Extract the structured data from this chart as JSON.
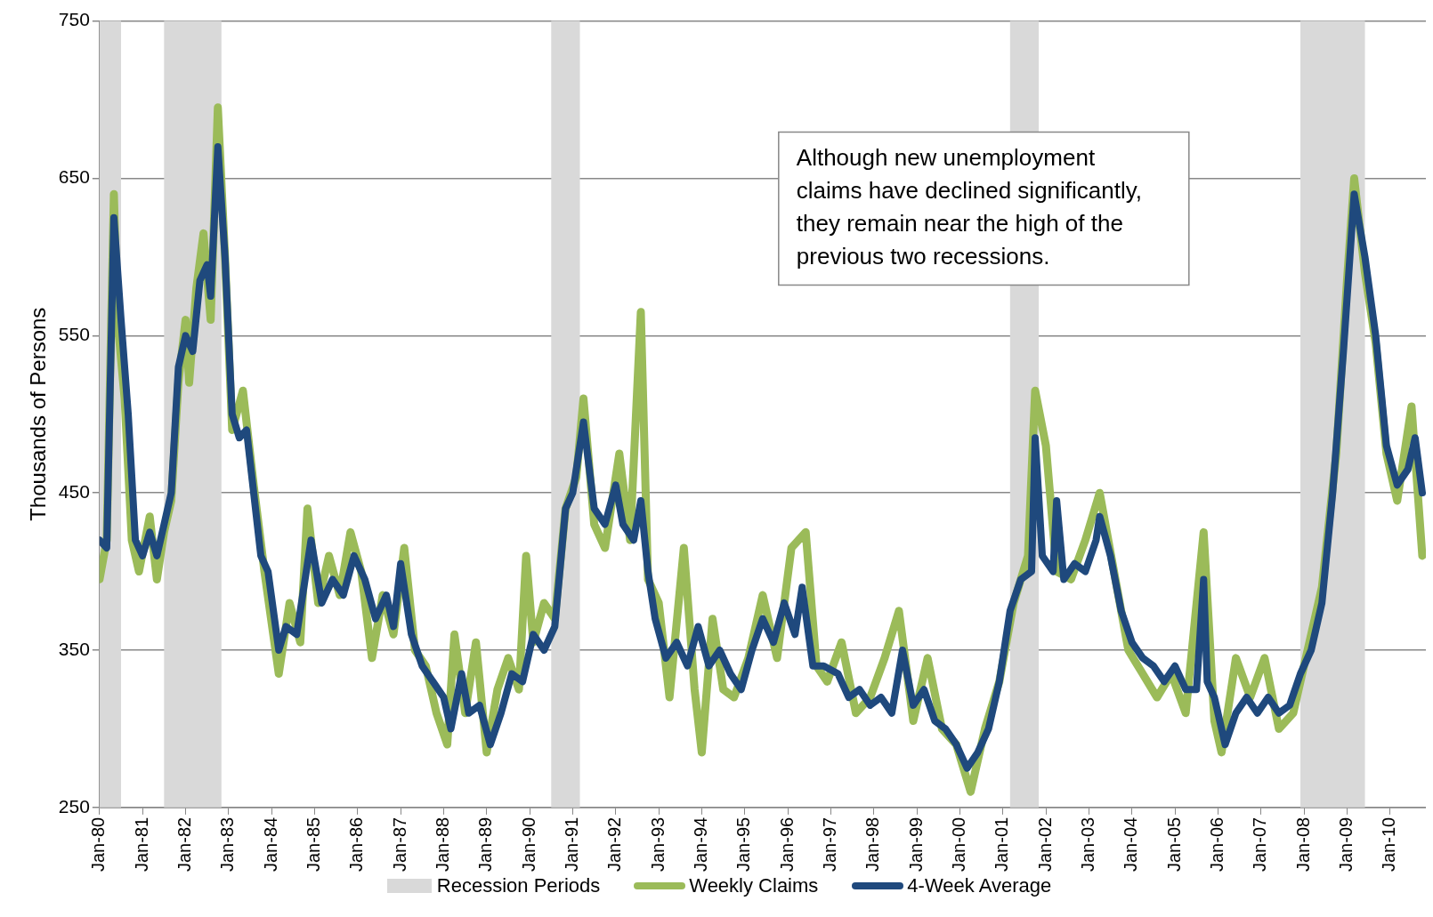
{
  "chart_data": {
    "type": "line",
    "ylabel": "Thousands of Persons",
    "annotations": [
      "Although new unemployment claims have declined significantly, they remain near the high of the previous two recessions."
    ],
    "xlim": [
      "1980-01",
      "2010-11"
    ],
    "xticks": [
      {
        "value": "1980-01",
        "label": "Jan-80"
      },
      {
        "value": "1981-01",
        "label": "Jan-81"
      },
      {
        "value": "1982-01",
        "label": "Jan-82"
      },
      {
        "value": "1983-01",
        "label": "Jan-83"
      },
      {
        "value": "1984-01",
        "label": "Jan-84"
      },
      {
        "value": "1985-01",
        "label": "Jan-85"
      },
      {
        "value": "1986-01",
        "label": "Jan-86"
      },
      {
        "value": "1987-01",
        "label": "Jan-87"
      },
      {
        "value": "1988-01",
        "label": "Jan-88"
      },
      {
        "value": "1989-01",
        "label": "Jan-89"
      },
      {
        "value": "1990-01",
        "label": "Jan-90"
      },
      {
        "value": "1991-01",
        "label": "Jan-91"
      },
      {
        "value": "1992-01",
        "label": "Jan-92"
      },
      {
        "value": "1993-01",
        "label": "Jan-93"
      },
      {
        "value": "1994-01",
        "label": "Jan-94"
      },
      {
        "value": "1995-01",
        "label": "Jan-95"
      },
      {
        "value": "1996-01",
        "label": "Jan-96"
      },
      {
        "value": "1997-01",
        "label": "Jan-97"
      },
      {
        "value": "1998-01",
        "label": "Jan-98"
      },
      {
        "value": "1999-01",
        "label": "Jan-99"
      },
      {
        "value": "2000-01",
        "label": "Jan-00"
      },
      {
        "value": "2001-01",
        "label": "Jan-01"
      },
      {
        "value": "2002-01",
        "label": "Jan-02"
      },
      {
        "value": "2003-01",
        "label": "Jan-03"
      },
      {
        "value": "2004-01",
        "label": "Jan-04"
      },
      {
        "value": "2005-01",
        "label": "Jan-05"
      },
      {
        "value": "2006-01",
        "label": "Jan-06"
      },
      {
        "value": "2007-01",
        "label": "Jan-07"
      },
      {
        "value": "2008-01",
        "label": "Jan-08"
      },
      {
        "value": "2009-01",
        "label": "Jan-09"
      },
      {
        "value": "2010-01",
        "label": "Jan-10"
      }
    ],
    "ylim": [
      250,
      750
    ],
    "yticks": [
      250,
      350,
      450,
      550,
      650,
      750
    ],
    "grid": "y",
    "legend": "bottom",
    "marker": "none",
    "bands": [
      {
        "axis": "x",
        "from": "1980-01",
        "to": "1980-07",
        "label": "Recession Periods",
        "color": "#d9d9d9"
      },
      {
        "axis": "x",
        "from": "1981-07",
        "to": "1982-11",
        "color": "#d9d9d9"
      },
      {
        "axis": "x",
        "from": "1990-07",
        "to": "1991-03",
        "color": "#d9d9d9"
      },
      {
        "axis": "x",
        "from": "2001-03",
        "to": "2001-11",
        "color": "#d9d9d9"
      },
      {
        "axis": "x",
        "from": "2007-12",
        "to": "2009-06",
        "color": "#d9d9d9"
      }
    ],
    "series": [
      {
        "name": "Weekly Claims",
        "color": "#9bbb59",
        "x": [
          "1980-01",
          "1980-03",
          "1980-05",
          "1980-06",
          "1980-08",
          "1980-10",
          "1980-12",
          "1981-03",
          "1981-05",
          "1981-07",
          "1981-09",
          "1981-11",
          "1982-01",
          "1982-02",
          "1982-04",
          "1982-06",
          "1982-08",
          "1982-10",
          "1982-12",
          "1983-02",
          "1983-05",
          "1983-08",
          "1983-11",
          "1984-03",
          "1984-06",
          "1984-09",
          "1984-11",
          "1985-02",
          "1985-05",
          "1985-08",
          "1985-11",
          "1986-02",
          "1986-05",
          "1986-08",
          "1986-11",
          "1987-02",
          "1987-05",
          "1987-08",
          "1987-11",
          "1988-02",
          "1988-04",
          "1988-07",
          "1988-10",
          "1989-01",
          "1989-04",
          "1989-07",
          "1989-10",
          "1989-12",
          "1990-02",
          "1990-05",
          "1990-08",
          "1990-11",
          "1991-02",
          "1991-04",
          "1991-07",
          "1991-10",
          "1992-02",
          "1992-05",
          "1992-08",
          "1992-10",
          "1993-01",
          "1993-04",
          "1993-08",
          "1993-11",
          "1994-01",
          "1994-04",
          "1994-07",
          "1994-10",
          "1995-02",
          "1995-06",
          "1995-10",
          "1996-02",
          "1996-06",
          "1996-09",
          "1996-12",
          "1997-04",
          "1997-08",
          "1997-12",
          "1998-04",
          "1998-08",
          "1998-12",
          "1999-04",
          "1999-08",
          "1999-12",
          "2000-04",
          "2000-08",
          "2000-12",
          "2001-04",
          "2001-08",
          "2001-10",
          "2002-01",
          "2002-04",
          "2002-08",
          "2002-12",
          "2003-04",
          "2003-08",
          "2003-12",
          "2004-04",
          "2004-08",
          "2004-12",
          "2005-04",
          "2005-09",
          "2005-12",
          "2006-02",
          "2006-06",
          "2006-10",
          "2007-02",
          "2007-06",
          "2007-10",
          "2008-02",
          "2008-06",
          "2008-10",
          "2009-01",
          "2009-03",
          "2009-06",
          "2009-09",
          "2009-12",
          "2010-03",
          "2010-07",
          "2010-10"
        ],
        "values": [
          395,
          420,
          640,
          560,
          510,
          420,
          400,
          435,
          395,
          425,
          445,
          520,
          560,
          520,
          580,
          615,
          560,
          695,
          600,
          490,
          515,
          455,
          400,
          335,
          380,
          355,
          440,
          380,
          410,
          385,
          425,
          400,
          345,
          385,
          360,
          415,
          350,
          340,
          310,
          290,
          360,
          310,
          355,
          285,
          325,
          345,
          325,
          410,
          355,
          380,
          370,
          440,
          460,
          510,
          430,
          415,
          475,
          420,
          565,
          395,
          380,
          320,
          415,
          325,
          285,
          370,
          325,
          320,
          345,
          385,
          345,
          415,
          425,
          340,
          330,
          355,
          310,
          320,
          345,
          375,
          305,
          345,
          300,
          290,
          260,
          300,
          330,
          380,
          410,
          515,
          480,
          400,
          395,
          420,
          450,
          400,
          350,
          335,
          320,
          335,
          310,
          425,
          305,
          285,
          345,
          320,
          345,
          300,
          310,
          350,
          390,
          475,
          585,
          650,
          590,
          545,
          475,
          445,
          505,
          410
        ]
      },
      {
        "name": "4-Week Average",
        "color": "#1f497d",
        "x": [
          "1980-01",
          "1980-03",
          "1980-05",
          "1980-07",
          "1980-09",
          "1980-11",
          "1981-01",
          "1981-03",
          "1981-05",
          "1981-07",
          "1981-09",
          "1981-11",
          "1982-01",
          "1982-03",
          "1982-05",
          "1982-07",
          "1982-08",
          "1982-10",
          "1982-12",
          "1983-02",
          "1983-04",
          "1983-06",
          "1983-08",
          "1983-10",
          "1983-12",
          "1984-03",
          "1984-05",
          "1984-08",
          "1984-10",
          "1984-12",
          "1985-03",
          "1985-06",
          "1985-09",
          "1985-12",
          "1986-03",
          "1986-06",
          "1986-09",
          "1986-11",
          "1987-01",
          "1987-04",
          "1987-07",
          "1987-10",
          "1988-01",
          "1988-03",
          "1988-06",
          "1988-08",
          "1988-11",
          "1989-02",
          "1989-05",
          "1989-08",
          "1989-11",
          "1990-02",
          "1990-05",
          "1990-08",
          "1990-11",
          "1991-01",
          "1991-04",
          "1991-07",
          "1991-10",
          "1992-01",
          "1992-03",
          "1992-06",
          "1992-08",
          "1992-10",
          "1992-12",
          "1993-03",
          "1993-06",
          "1993-09",
          "1993-12",
          "1994-03",
          "1994-06",
          "1994-09",
          "1994-12",
          "1995-03",
          "1995-06",
          "1995-09",
          "1995-12",
          "1996-03",
          "1996-05",
          "1996-08",
          "1996-11",
          "1997-03",
          "1997-06",
          "1997-09",
          "1997-12",
          "1998-03",
          "1998-06",
          "1998-09",
          "1998-12",
          "1999-03",
          "1999-06",
          "1999-09",
          "1999-12",
          "2000-03",
          "2000-06",
          "2000-09",
          "2000-12",
          "2001-03",
          "2001-06",
          "2001-09",
          "2001-10",
          "2001-12",
          "2002-03",
          "2002-04",
          "2002-06",
          "2002-09",
          "2002-12",
          "2003-03",
          "2003-04",
          "2003-07",
          "2003-10",
          "2004-01",
          "2004-04",
          "2004-07",
          "2004-10",
          "2005-01",
          "2005-04",
          "2005-07",
          "2005-09",
          "2005-10",
          "2005-12",
          "2006-03",
          "2006-06",
          "2006-09",
          "2006-12",
          "2007-03",
          "2007-06",
          "2007-09",
          "2007-12",
          "2008-03",
          "2008-06",
          "2008-09",
          "2008-12",
          "2009-03",
          "2009-06",
          "2009-09",
          "2009-12",
          "2010-03",
          "2010-06",
          "2010-08",
          "2010-10"
        ],
        "values": [
          420,
          415,
          625,
          560,
          500,
          420,
          410,
          425,
          410,
          430,
          450,
          530,
          550,
          540,
          585,
          595,
          575,
          670,
          600,
          500,
          485,
          490,
          450,
          410,
          400,
          350,
          365,
          360,
          390,
          420,
          380,
          395,
          385,
          410,
          395,
          370,
          385,
          365,
          405,
          360,
          340,
          330,
          320,
          300,
          335,
          310,
          315,
          290,
          310,
          335,
          330,
          360,
          350,
          365,
          440,
          450,
          495,
          440,
          430,
          455,
          430,
          420,
          445,
          400,
          370,
          345,
          355,
          340,
          365,
          340,
          350,
          335,
          325,
          350,
          370,
          355,
          380,
          360,
          390,
          340,
          340,
          335,
          320,
          325,
          315,
          320,
          310,
          350,
          315,
          325,
          305,
          300,
          290,
          275,
          285,
          300,
          330,
          375,
          395,
          400,
          485,
          410,
          400,
          445,
          395,
          405,
          400,
          420,
          435,
          410,
          375,
          355,
          345,
          340,
          330,
          340,
          325,
          325,
          395,
          330,
          320,
          290,
          310,
          320,
          310,
          320,
          310,
          315,
          335,
          350,
          380,
          450,
          540,
          640,
          600,
          550,
          480,
          455,
          465,
          485,
          450
        ]
      }
    ]
  }
}
